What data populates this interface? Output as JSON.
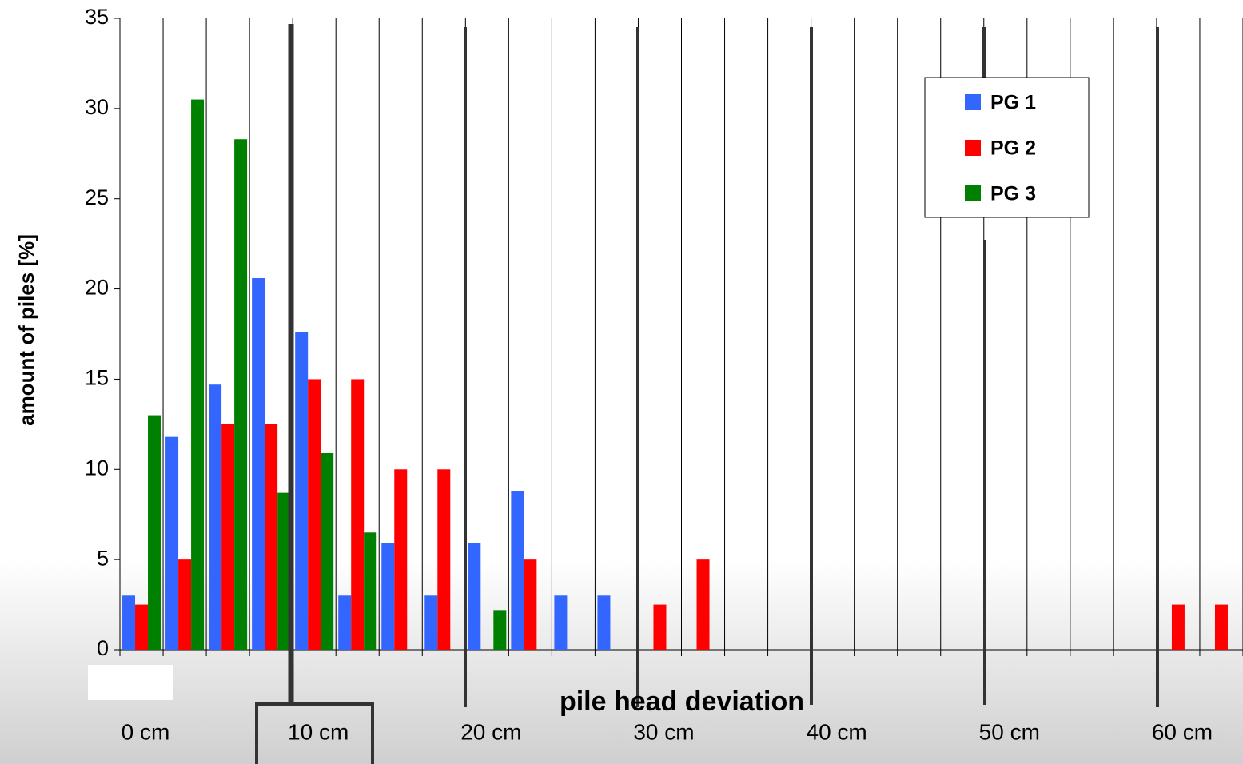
{
  "chart_data": {
    "type": "bar",
    "xlabel": "pile head deviation",
    "ylabel": "amount of piles [%]",
    "categories": [
      "0 cm",
      null,
      null,
      null,
      "10 cm",
      null,
      null,
      null,
      "20 cm",
      null,
      null,
      null,
      "30 cm",
      null,
      null,
      null,
      "40 cm",
      null,
      null,
      null,
      "50 cm",
      null,
      null,
      null,
      "60 cm",
      null
    ],
    "series": [
      {
        "name": "PG 1",
        "color": "#3366ff",
        "values": [
          3,
          11.8,
          14.7,
          20.6,
          17.6,
          3,
          5.9,
          3,
          5.9,
          8.8,
          3,
          3,
          0,
          0,
          0,
          0,
          0,
          0,
          0,
          0,
          0,
          0,
          0,
          0,
          0,
          0
        ]
      },
      {
        "name": "PG 2",
        "color": "#ff0000",
        "values": [
          2.5,
          5,
          12.5,
          12.5,
          15,
          15,
          10,
          10,
          0,
          5,
          0,
          0,
          2.5,
          5,
          0,
          0,
          0,
          0,
          0,
          0,
          0,
          0,
          0,
          0,
          2.5,
          2.5
        ]
      },
      {
        "name": "PG 3",
        "color": "#008000",
        "values": [
          13,
          30.5,
          28.3,
          8.7,
          10.9,
          6.5,
          0,
          0,
          2.2,
          0,
          0,
          0,
          0,
          0,
          0,
          0,
          0,
          0,
          0,
          0,
          0,
          0,
          0,
          0,
          0,
          0
        ]
      }
    ],
    "ylim": [
      0,
      35
    ],
    "yticks": [
      0,
      5,
      10,
      15,
      20,
      25,
      30,
      35
    ],
    "grid": false,
    "legend": "upper right"
  }
}
